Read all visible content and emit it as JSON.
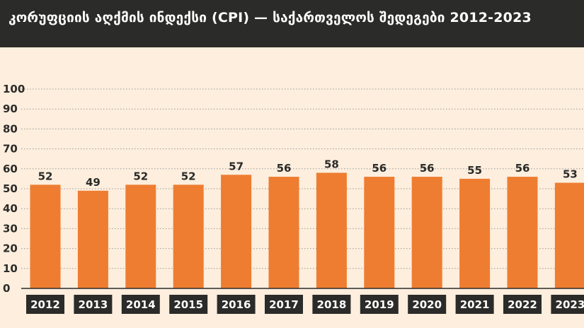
{
  "header": {
    "title": "კორუფციის აღქმის ინდექსი (CPI) — საქართველოს შედეგები 2012-2023"
  },
  "colors": {
    "background": "#fdeedd",
    "header": "#2b2b29",
    "bar": "#ee7d31",
    "year_label_bg": "#2b2b29",
    "grid": "#999999"
  },
  "chart_data": {
    "type": "bar",
    "title": "კორუფციის აღქმის ინდექსი (CPI) — საქართველოს შედეგები 2012-2023",
    "categories": [
      "2012",
      "2013",
      "2014",
      "2015",
      "2016",
      "2017",
      "2018",
      "2019",
      "2020",
      "2021",
      "2022",
      "2023"
    ],
    "values": [
      52,
      49,
      52,
      52,
      57,
      56,
      58,
      56,
      56,
      55,
      56,
      53
    ],
    "y_ticks": [
      0,
      10,
      20,
      30,
      40,
      50,
      60,
      70,
      80,
      90,
      100
    ],
    "ylim": [
      0,
      100
    ],
    "grid": true,
    "data_labels": true
  }
}
